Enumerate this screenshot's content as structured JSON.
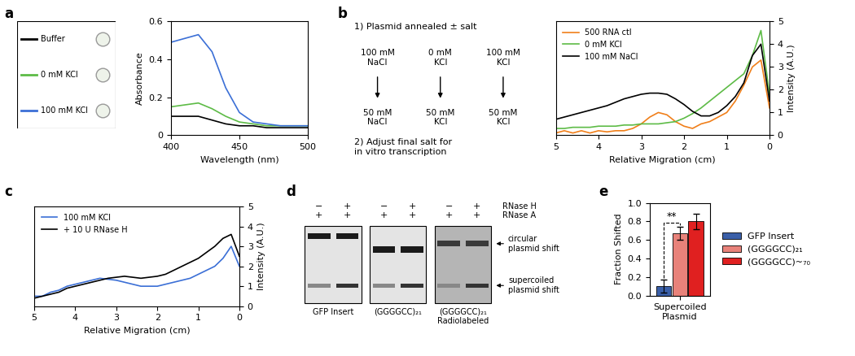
{
  "chart_data": [
    {
      "type": "line",
      "panel": "a",
      "x_label": "Wavelength (nm)",
      "y_label": "Absorbance",
      "x": [
        400,
        410,
        420,
        430,
        440,
        450,
        460,
        470,
        480,
        490,
        500
      ],
      "series": [
        {
          "name": "Buffer",
          "color": "#000000",
          "values": [
            0.1,
            0.1,
            0.1,
            0.08,
            0.06,
            0.05,
            0.05,
            0.04,
            0.04,
            0.04,
            0.04
          ]
        },
        {
          "name": "0 mM KCl",
          "color": "#5dbb46",
          "values": [
            0.15,
            0.16,
            0.17,
            0.14,
            0.1,
            0.07,
            0.06,
            0.05,
            0.05,
            0.05,
            0.05
          ]
        },
        {
          "name": "100 mM KCl",
          "color": "#3b6fd6",
          "values": [
            0.49,
            0.51,
            0.53,
            0.44,
            0.25,
            0.12,
            0.07,
            0.06,
            0.05,
            0.05,
            0.05
          ]
        }
      ],
      "xlim": [
        400,
        500
      ],
      "xticks": [
        400,
        450,
        500
      ],
      "ylim": [
        0,
        0.6
      ],
      "yticks": [
        0,
        0.2,
        0.4,
        0.6
      ]
    },
    {
      "type": "line",
      "panel": "b",
      "x_label": "Relative Migration (cm)",
      "y_label": "Intensity (A.U.)",
      "x": [
        5,
        4.8,
        4.6,
        4.4,
        4.2,
        4.0,
        3.8,
        3.6,
        3.4,
        3.2,
        3.0,
        2.8,
        2.6,
        2.4,
        2.2,
        2.0,
        1.8,
        1.6,
        1.4,
        1.2,
        1.0,
        0.8,
        0.6,
        0.4,
        0.2,
        0
      ],
      "series": [
        {
          "name": "500 RNA ctl",
          "color": "#f07f1a",
          "values": [
            0.1,
            0.2,
            0.1,
            0.2,
            0.1,
            0.2,
            0.15,
            0.2,
            0.2,
            0.3,
            0.5,
            0.8,
            1.0,
            0.9,
            0.6,
            0.4,
            0.3,
            0.5,
            0.6,
            0.8,
            1.0,
            1.5,
            2.2,
            3.0,
            3.3,
            1.2
          ]
        },
        {
          "name": "0 mM KCl",
          "color": "#5dbb46",
          "values": [
            0.3,
            0.3,
            0.35,
            0.35,
            0.35,
            0.4,
            0.4,
            0.4,
            0.45,
            0.45,
            0.5,
            0.5,
            0.5,
            0.55,
            0.6,
            0.75,
            0.95,
            1.2,
            1.5,
            1.8,
            2.1,
            2.4,
            2.7,
            3.5,
            4.6,
            1.8
          ]
        },
        {
          "name": "100 mM NaCl",
          "color": "#000000",
          "values": [
            0.7,
            0.8,
            0.9,
            1.0,
            1.1,
            1.2,
            1.3,
            1.45,
            1.6,
            1.7,
            1.8,
            1.85,
            1.85,
            1.8,
            1.6,
            1.35,
            1.05,
            0.85,
            0.85,
            1.0,
            1.3,
            1.7,
            2.3,
            3.5,
            4.0,
            1.5
          ]
        }
      ],
      "xlim": [
        5,
        0
      ],
      "xticks": [
        5,
        4,
        3,
        2,
        1,
        0
      ],
      "ylim": [
        0,
        5
      ],
      "yticks": [
        0,
        1,
        2,
        3,
        4,
        5
      ],
      "legend": "upper left"
    },
    {
      "type": "line",
      "panel": "c",
      "x_label": "Relative Migration (cm)",
      "y_label": "Intensity (A.U.)",
      "x": [
        5,
        4.8,
        4.6,
        4.4,
        4.2,
        4.0,
        3.8,
        3.6,
        3.4,
        3.2,
        3.0,
        2.8,
        2.6,
        2.4,
        2.2,
        2.0,
        1.8,
        1.6,
        1.4,
        1.2,
        1.0,
        0.8,
        0.6,
        0.4,
        0.2,
        0
      ],
      "series": [
        {
          "name": "100 mM KCl",
          "color": "#3b6fd6",
          "values": [
            0.5,
            0.5,
            0.7,
            0.8,
            1.0,
            1.1,
            1.2,
            1.3,
            1.4,
            1.35,
            1.3,
            1.2,
            1.1,
            1.0,
            1.0,
            1.0,
            1.1,
            1.2,
            1.3,
            1.4,
            1.6,
            1.8,
            2.0,
            2.4,
            3.0,
            2.0
          ]
        },
        {
          "name": "+ 10 U RNase H",
          "color": "#000000",
          "values": [
            0.4,
            0.5,
            0.6,
            0.7,
            0.9,
            1.0,
            1.1,
            1.2,
            1.3,
            1.4,
            1.45,
            1.5,
            1.45,
            1.4,
            1.45,
            1.5,
            1.6,
            1.8,
            2.0,
            2.2,
            2.4,
            2.7,
            3.0,
            3.4,
            3.6,
            2.5
          ]
        }
      ],
      "xlim": [
        5,
        0
      ],
      "xticks": [
        5,
        4,
        3,
        2,
        1,
        0
      ],
      "ylim": [
        0,
        5
      ],
      "yticks": [
        0,
        1,
        2,
        3,
        4,
        5
      ],
      "legend": "upper left"
    },
    {
      "type": "bar",
      "panel": "e",
      "y_label": "Fraction Shifted",
      "categories": [
        "Supercoiled Plasmid"
      ],
      "series": [
        {
          "name": "GFP Insert",
          "color": "#3a5fa8",
          "values": [
            0.1
          ],
          "errors": [
            0.07
          ]
        },
        {
          "name": "(GGGGCC)₂₁",
          "color": "#e8827a",
          "values": [
            0.67
          ],
          "errors": [
            0.07
          ]
        },
        {
          "name": "(GGGGCC)~₇₀",
          "color": "#e02020",
          "values": [
            0.8
          ],
          "errors": [
            0.08
          ]
        }
      ],
      "significance": {
        "text": "**",
        "series": [
          "GFP Insert",
          "(GGGGCC)₂₁"
        ]
      },
      "ylim": [
        0,
        1
      ],
      "yticks": [
        {
          "value": 0,
          "label": "0.0"
        },
        0.2,
        0.4,
        0.6,
        0.8,
        {
          "value": 1,
          "label": "1.0"
        }
      ],
      "legend": "center left"
    }
  ],
  "diagram_b": {
    "step1": "1) Plasmid annealed ± salt",
    "start": [
      "100 mM\nNaCl",
      "0 mM\nKCl",
      "100 mM\nKCl"
    ],
    "end": [
      "50 mM\nNaCl",
      "50 mM\nKCl",
      "50 mM\nKCl"
    ],
    "step2": "2) Adjust final salt for\nin vitro transcription"
  },
  "gel_d": {
    "panel": "d",
    "rows": [
      {
        "label": "RNase H",
        "marks": [
          "−",
          "+",
          "−",
          "+",
          "−",
          "+"
        ]
      },
      {
        "label": "RNase A",
        "marks": [
          "+",
          "+",
          "+",
          "+",
          "+",
          "+"
        ]
      }
    ],
    "gels": [
      "GFP Insert",
      "(GGGGCC)₂₁",
      "(GGGGCC)₂₁\nRadiolabeled"
    ],
    "bands": [
      "circular\nplasmid shift",
      "supercoiled\nplasmid shift"
    ]
  }
}
